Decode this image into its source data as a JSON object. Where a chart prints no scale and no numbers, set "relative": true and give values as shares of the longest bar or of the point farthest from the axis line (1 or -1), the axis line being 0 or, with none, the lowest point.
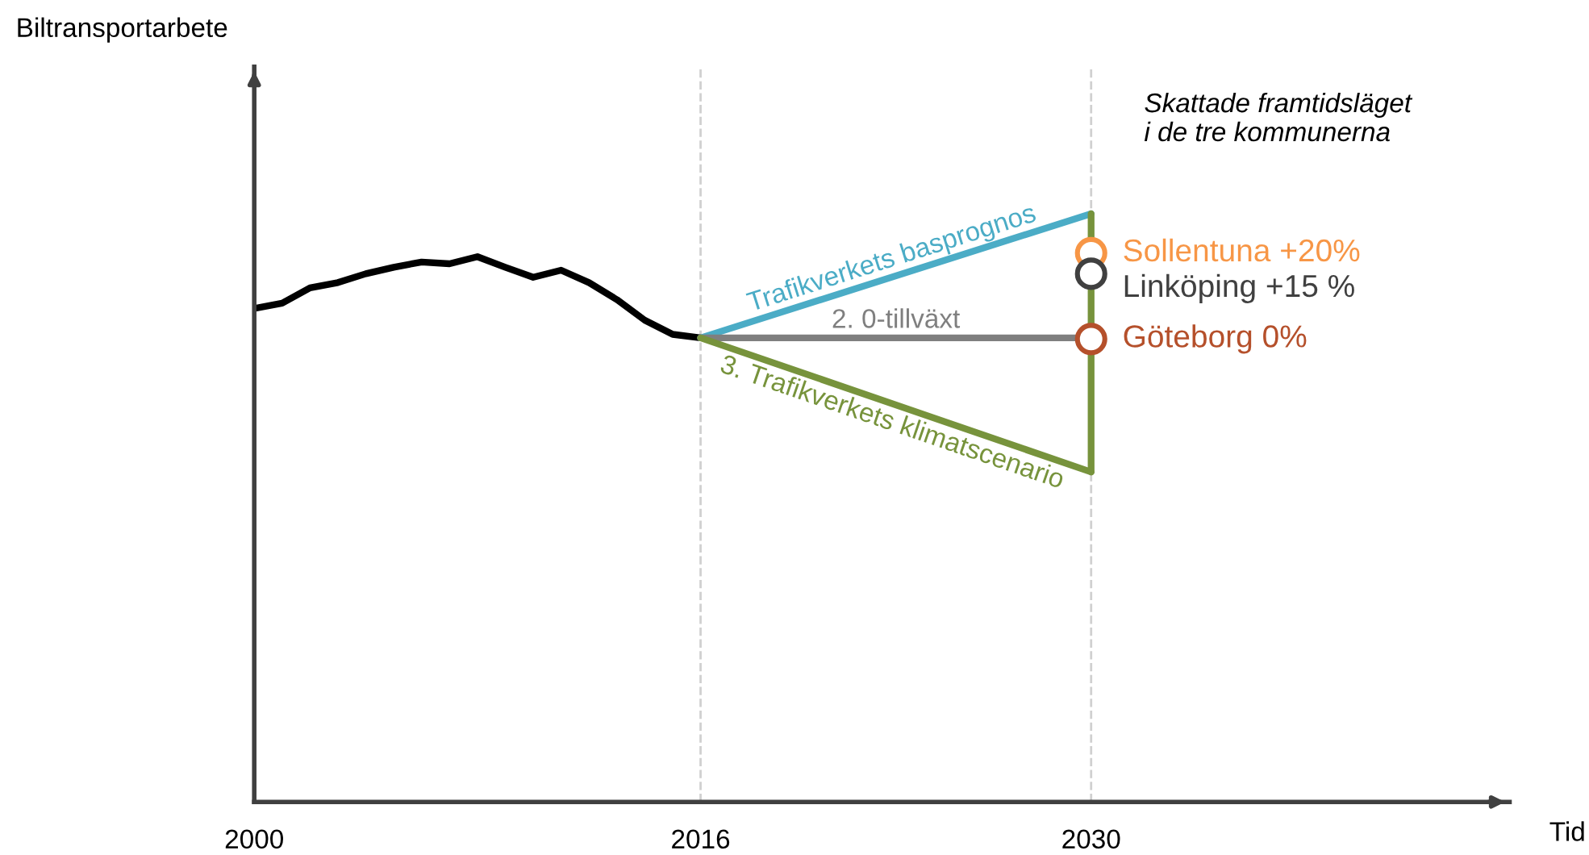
{
  "chart_data": {
    "type": "line",
    "relative": true,
    "xlabel": "Tid",
    "xlim": [
      2000,
      2045
    ],
    "xticks": [
      2000,
      2016,
      2030
    ],
    "grid": false,
    "legend": false,
    "annotations": [
      "Biltransportarbete",
      "Skattade framtidsläget\ni de tre kommunerna"
    ],
    "ref_lines": [
      {
        "axis": "x",
        "value": 2016,
        "color": "#d0d0d0",
        "line_style": "dashed"
      },
      {
        "axis": "x",
        "value": 2030,
        "color": "#d0d0d0",
        "line_style": "dashed"
      }
    ],
    "series": [
      {
        "color": "#000000",
        "x": [
          2000,
          2001,
          2002,
          2003,
          2004,
          2005,
          2006,
          2007,
          2008,
          2009,
          2010,
          2011,
          2012,
          2013,
          2014,
          2015,
          2016
        ],
        "values": [
          0.839,
          0.848,
          0.874,
          0.883,
          0.898,
          0.909,
          0.918,
          0.915,
          0.927,
          0.909,
          0.892,
          0.904,
          0.883,
          0.854,
          0.819,
          0.795,
          0.789
        ]
      },
      {
        "name": "Trafikverkets basprognos",
        "color": "#4bacc6",
        "x": [
          2016,
          2030
        ],
        "values": [
          0.789,
          1.0
        ]
      },
      {
        "name": "2. 0-tillväxt",
        "color": "#7f7f7f",
        "x": [
          2016,
          2030
        ],
        "values": [
          0.789,
          0.789
        ]
      },
      {
        "name": "3. Trafikverkets klimatscenario",
        "color": "#77933c",
        "x": [
          2016,
          2030
        ],
        "values": [
          0.789,
          0.561
        ]
      },
      {
        "color": "#77933c",
        "x": [
          2030,
          2030
        ],
        "values": [
          0.561,
          1.0
        ]
      },
      {
        "type": "scatter",
        "name": "Sollentuna +20%",
        "color": "#f79646",
        "x": [
          2030
        ],
        "values": [
          0.933
        ]
      },
      {
        "type": "scatter",
        "name": "Linköping +15 %",
        "color": "#404040",
        "x": [
          2030
        ],
        "values": [
          0.898
        ]
      },
      {
        "type": "scatter",
        "name": "Göteborg 0%",
        "color": "#b5502b",
        "x": [
          2030
        ],
        "values": [
          0.787
        ]
      }
    ]
  }
}
